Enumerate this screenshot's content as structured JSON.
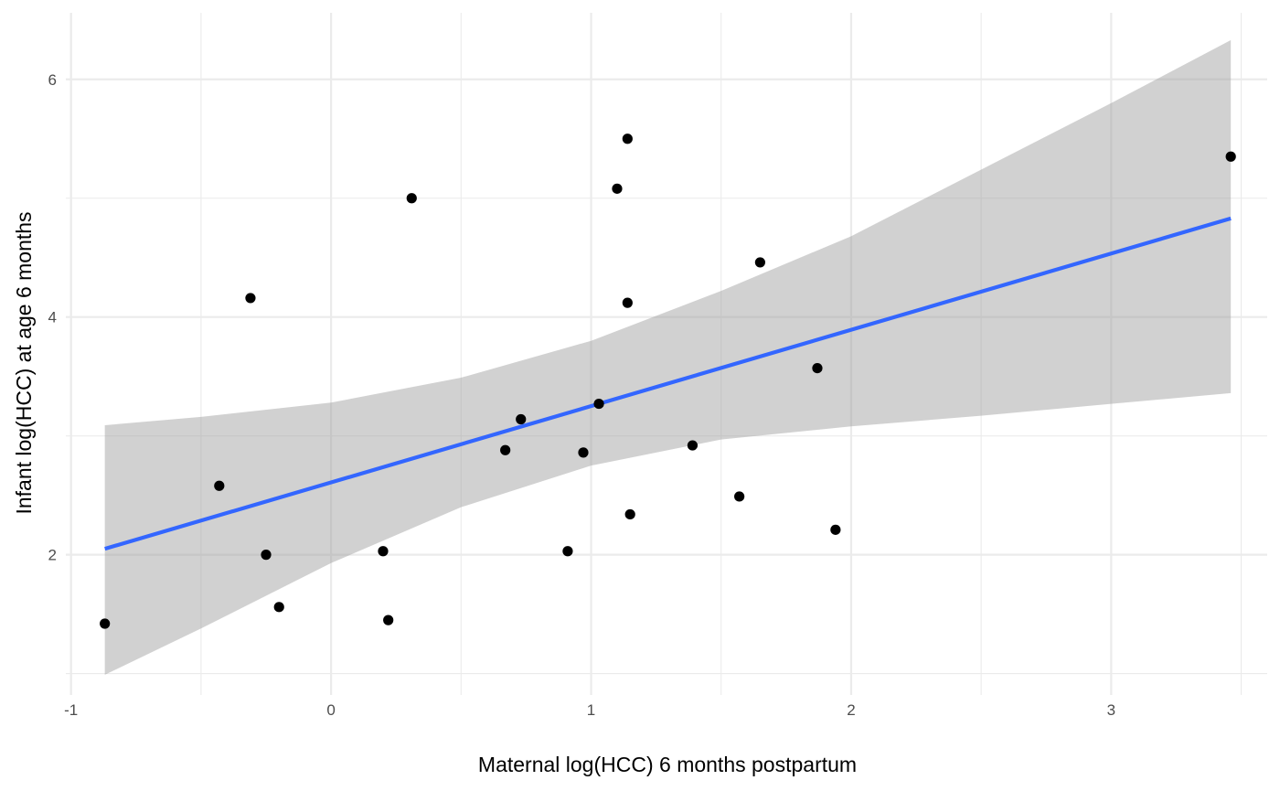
{
  "chart_data": {
    "type": "scatter",
    "title": "",
    "xlabel": "Maternal log(HCC) 6 months postpartum",
    "ylabel": "Infant log(HCC) at age 6 months",
    "xlim": [
      -1.02,
      3.6
    ],
    "ylim": [
      0.82,
      6.56
    ],
    "x_ticks": [
      -1,
      0,
      1,
      2,
      3
    ],
    "x_tick_labels": [
      "-1",
      "0",
      "1",
      "2",
      "3"
    ],
    "y_ticks": [
      2,
      4,
      6
    ],
    "y_tick_labels": [
      "2",
      "4",
      "6"
    ],
    "grid": true,
    "legend": "none",
    "points": [
      {
        "x": -0.87,
        "y": 1.42
      },
      {
        "x": -0.43,
        "y": 2.58
      },
      {
        "x": -0.31,
        "y": 4.16
      },
      {
        "x": -0.25,
        "y": 2.0
      },
      {
        "x": -0.2,
        "y": 1.56
      },
      {
        "x": 0.2,
        "y": 2.03
      },
      {
        "x": 0.22,
        "y": 1.45
      },
      {
        "x": 0.31,
        "y": 5.0
      },
      {
        "x": 0.67,
        "y": 2.88
      },
      {
        "x": 0.73,
        "y": 3.14
      },
      {
        "x": 0.91,
        "y": 2.03
      },
      {
        "x": 0.97,
        "y": 2.86
      },
      {
        "x": 1.03,
        "y": 3.27
      },
      {
        "x": 1.1,
        "y": 5.08
      },
      {
        "x": 1.14,
        "y": 5.5
      },
      {
        "x": 1.14,
        "y": 4.12
      },
      {
        "x": 1.15,
        "y": 2.34
      },
      {
        "x": 1.39,
        "y": 2.92
      },
      {
        "x": 1.57,
        "y": 2.49
      },
      {
        "x": 1.65,
        "y": 4.46
      },
      {
        "x": 1.87,
        "y": 3.57
      },
      {
        "x": 1.94,
        "y": 2.21
      },
      {
        "x": 3.46,
        "y": 5.35
      }
    ],
    "fit_line": {
      "x": [
        -0.87,
        3.46
      ],
      "y": [
        2.05,
        4.83
      ]
    },
    "confidence_band": {
      "x": [
        -0.87,
        -0.5,
        0.0,
        0.5,
        1.0,
        1.5,
        2.0,
        2.5,
        3.0,
        3.46
      ],
      "lower": [
        0.99,
        1.38,
        1.93,
        2.4,
        2.75,
        2.97,
        3.08,
        3.17,
        3.27,
        3.36
      ],
      "upper": [
        3.09,
        3.16,
        3.28,
        3.49,
        3.8,
        4.22,
        4.68,
        5.24,
        5.8,
        6.33
      ]
    },
    "colors": {
      "points": "#000000",
      "fit_line": "#3366ff",
      "band": "#999999",
      "grid": "#ebebeb"
    }
  }
}
